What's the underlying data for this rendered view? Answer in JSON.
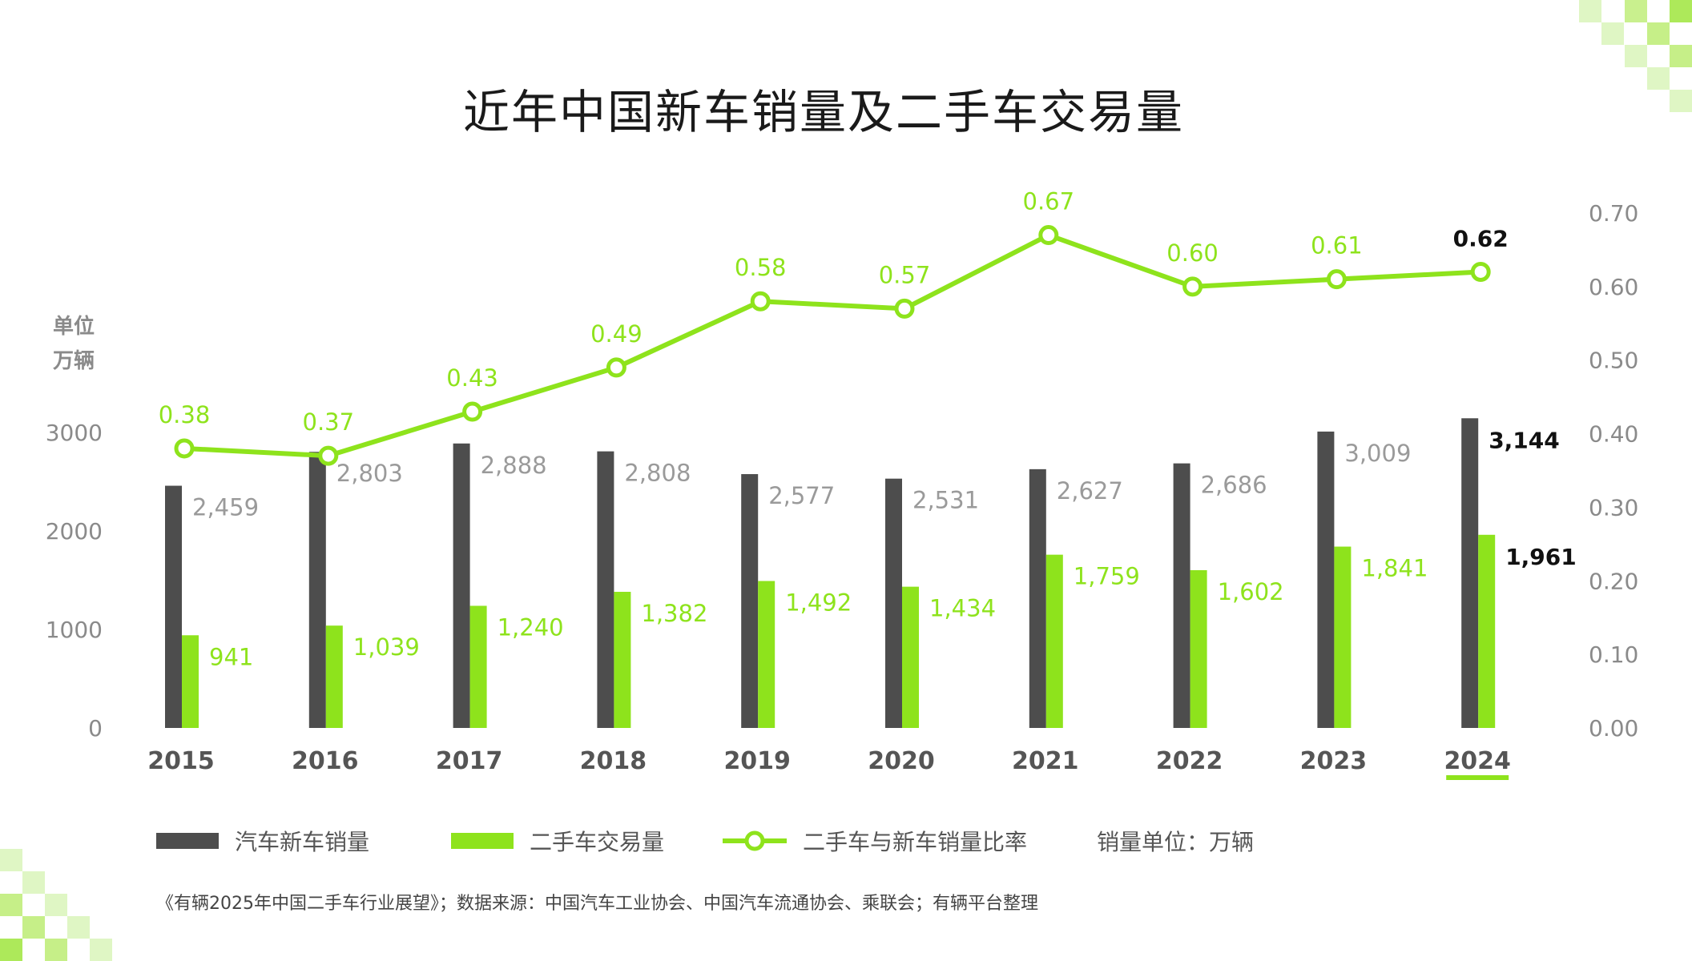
{
  "title": "近年中国新车销量及二手车交易量",
  "unit_label": [
    "单位",
    "万辆"
  ],
  "colors": {
    "new_car": "#4d4d4d",
    "used_car": "#8ee31c",
    "ratio_line": "#8ee31c",
    "label_gray": "#9a9a9a",
    "highlight": "#111111"
  },
  "chart_data": {
    "type": "bar+line",
    "categories": [
      "2015",
      "2016",
      "2017",
      "2018",
      "2019",
      "2020",
      "2021",
      "2022",
      "2023",
      "2024"
    ],
    "highlight_category": "2024",
    "series": [
      {
        "name": "汽车新车销量",
        "type": "bar",
        "axis": "left",
        "values": [
          2459,
          2803,
          2888,
          2808,
          2577,
          2531,
          2627,
          2686,
          3009,
          3144
        ],
        "labels": [
          "2,459",
          "2,803",
          "2,888",
          "2,808",
          "2,577",
          "2,531",
          "2,627",
          "2,686",
          "3,009",
          "3,144"
        ]
      },
      {
        "name": "二手车交易量",
        "type": "bar",
        "axis": "left",
        "values": [
          941,
          1039,
          1240,
          1382,
          1492,
          1434,
          1759,
          1602,
          1841,
          1961
        ],
        "labels": [
          "941",
          "1,039",
          "1,240",
          "1,382",
          "1,492",
          "1,434",
          "1,759",
          "1,602",
          "1,841",
          "1,961"
        ]
      },
      {
        "name": "二手车与新车销量比率",
        "type": "line",
        "axis": "right",
        "values": [
          0.38,
          0.37,
          0.43,
          0.49,
          0.58,
          0.57,
          0.67,
          0.6,
          0.61,
          0.62
        ],
        "labels": [
          "0.38",
          "0.37",
          "0.43",
          "0.49",
          "0.58",
          "0.57",
          "0.67",
          "0.60",
          "0.61",
          "0.62"
        ]
      }
    ],
    "left_axis": {
      "ticks": [
        "0",
        "1000",
        "2000",
        "3000"
      ],
      "range": [
        0,
        3000
      ]
    },
    "right_axis": {
      "ticks": [
        "0.00",
        "0.10",
        "0.20",
        "0.30",
        "0.40",
        "0.50",
        "0.60",
        "0.70"
      ],
      "range": [
        0,
        0.7
      ]
    },
    "grid": false,
    "legend_placement": "bottom"
  },
  "legend": {
    "new_car": "汽车新车销量",
    "used_car": "二手车交易量",
    "ratio": "二手车与新车销量比率",
    "unit_note": "销量单位：万辆"
  },
  "footer": "《有辆2025年中国二手车行业展望》；数据来源：中国汽车工业协会、中国汽车流通协会、乘联会；有辆平台整理"
}
